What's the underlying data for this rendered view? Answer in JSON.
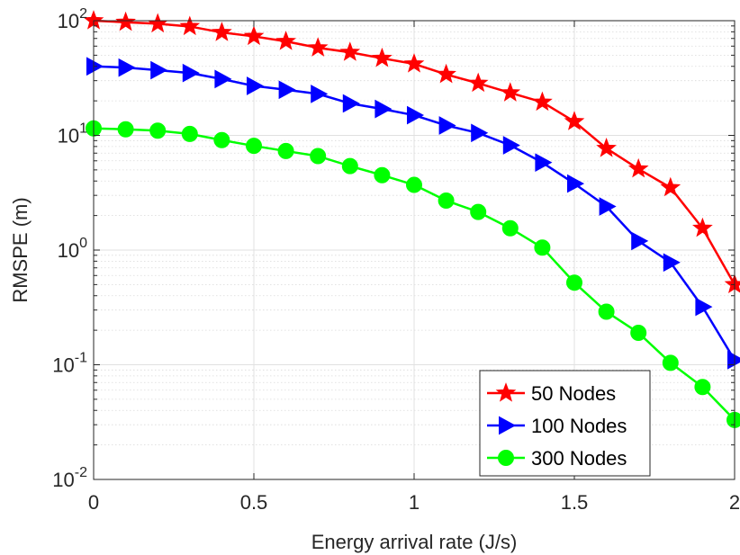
{
  "chart_data": {
    "type": "line",
    "title": "",
    "xlabel": "Energy arrival rate (J/s)",
    "ylabel": "RMSPE (m)",
    "xlim": [
      0,
      2
    ],
    "ylim": [
      0.01,
      100
    ],
    "yscale": "log",
    "grid": true,
    "legend_position": "bottom-right",
    "x_ticks": [
      {
        "value": 0,
        "label": "0"
      },
      {
        "value": 0.5,
        "label": "0.5"
      },
      {
        "value": 1,
        "label": "1"
      },
      {
        "value": 1.5,
        "label": "1.5"
      },
      {
        "value": 2,
        "label": "2"
      }
    ],
    "y_ticks": [
      {
        "value": 100,
        "base": "10",
        "exp": "2"
      },
      {
        "value": 10,
        "base": "10",
        "exp": "1"
      },
      {
        "value": 1,
        "base": "10",
        "exp": "0"
      },
      {
        "value": 0.1,
        "base": "10",
        "exp": "-1"
      },
      {
        "value": 0.01,
        "base": "10",
        "exp": "-2"
      }
    ],
    "x": [
      0,
      0.1,
      0.2,
      0.3,
      0.4,
      0.5,
      0.6,
      0.7,
      0.8,
      0.9,
      1.0,
      1.1,
      1.2,
      1.3,
      1.4,
      1.5,
      1.6,
      1.7,
      1.8,
      1.9,
      2.0
    ],
    "series": [
      {
        "name": "50 Nodes",
        "color": "#ff0000",
        "marker": "star",
        "values": [
          100,
          97,
          94,
          89,
          79,
          73,
          66,
          58,
          53,
          47,
          42,
          34,
          28.5,
          23.5,
          19.5,
          13.2,
          7.7,
          5.1,
          3.5,
          1.55,
          0.5
        ]
      },
      {
        "name": "100 Nodes",
        "color": "#0000ff",
        "marker": "triangle-right",
        "values": [
          40,
          39,
          37,
          35,
          31,
          27,
          25,
          23,
          19,
          17,
          15,
          12.2,
          10.5,
          8.2,
          5.8,
          3.8,
          2.4,
          1.2,
          0.78,
          0.32,
          0.11
        ]
      },
      {
        "name": "300 Nodes",
        "color": "#00ff00",
        "marker": "circle",
        "values": [
          11.5,
          11.3,
          11,
          10.3,
          9.1,
          8.1,
          7.3,
          6.6,
          5.4,
          4.5,
          3.7,
          2.7,
          2.15,
          1.55,
          1.05,
          0.52,
          0.29,
          0.19,
          0.104,
          0.064,
          0.033
        ]
      }
    ]
  }
}
